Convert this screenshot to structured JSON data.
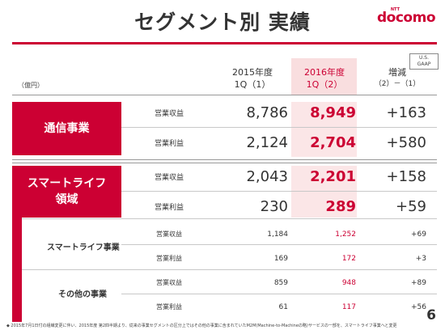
{
  "title": "セグメント別 実績",
  "logo": {
    "ntt": "NTT",
    "brand": "docomo"
  },
  "gaap": [
    "U.S.",
    "GAAP"
  ],
  "unit": "（億円）",
  "headers": {
    "col1": [
      "2015年度",
      "1Q（1）"
    ],
    "col2": [
      "2016年度",
      "1Q（2）"
    ],
    "col3": [
      "増減",
      "（2）－（1）"
    ]
  },
  "segments": {
    "telecom": {
      "label": "通信事業"
    },
    "smartlife": {
      "line1": "スマートライフ",
      "line2": "領域"
    }
  },
  "sub_segments": {
    "smartlife_business": "スマートライフ事業",
    "other_business": "その他の事業"
  },
  "rows": [
    {
      "label": "営業収益",
      "v1": "8,786",
      "v2": "8,949",
      "v3": "+163"
    },
    {
      "label": "営業利益",
      "v1": "2,124",
      "v2": "2,704",
      "v3": "+580"
    },
    {
      "label": "営業収益",
      "v1": "2,043",
      "v2": "2,201",
      "v3": "+158"
    },
    {
      "label": "営業利益",
      "v1": "230",
      "v2": "289",
      "v3": "+59"
    },
    {
      "label": "営業収益",
      "v1": "1,184",
      "v2": "1,252",
      "v3": "+69"
    },
    {
      "label": "営業利益",
      "v1": "169",
      "v2": "172",
      "v3": "+3"
    },
    {
      "label": "営業収益",
      "v1": "859",
      "v2": "948",
      "v3": "+89"
    },
    {
      "label": "営業利益",
      "v1": "61",
      "v2": "117",
      "v3": "+56"
    }
  ],
  "footnote": "◆ 2015年7月1日付の組織変更に伴い、2015年度 第2四半期より、従来の事業セグメントの区分上ではその他の事業に含まれていたM2M(Machine-to-Machineの略)サービスの一部を、スマートライフ事業へと変更",
  "page_number": "6",
  "colors": {
    "accent": "#cc0033",
    "highlight": "#f9dedf"
  }
}
